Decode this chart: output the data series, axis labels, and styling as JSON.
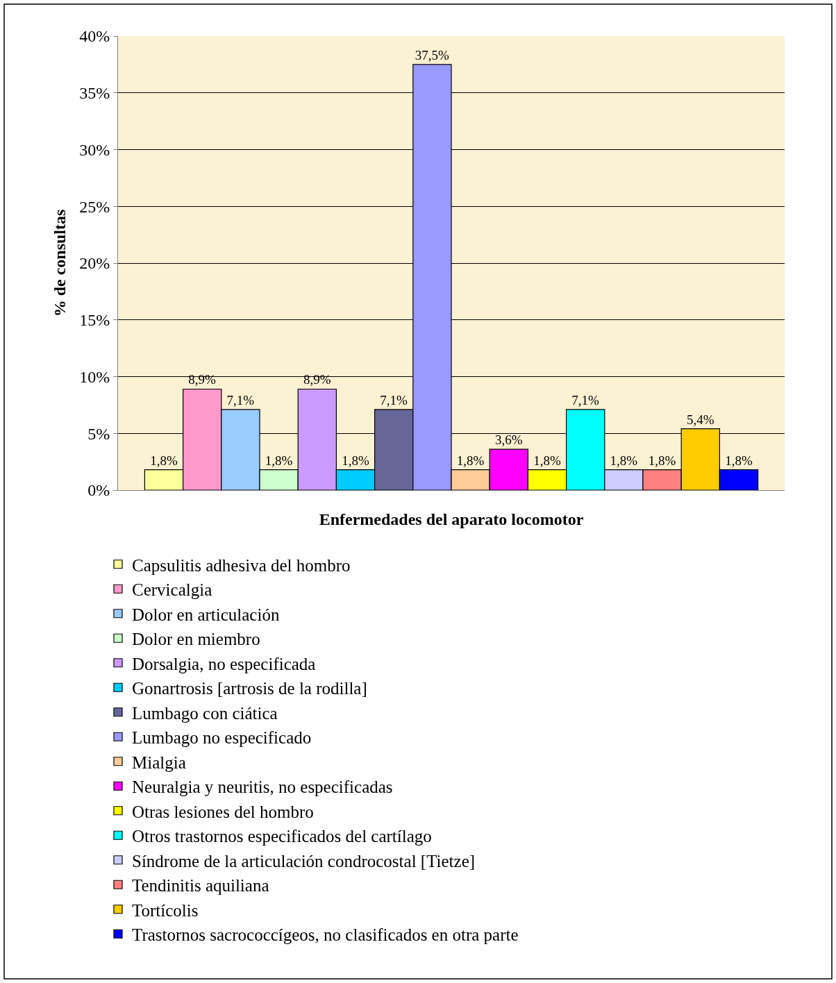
{
  "chart_data": {
    "type": "bar",
    "xlabel": "Enfermedades del aparato locomotor",
    "ylabel": "% de consultas",
    "categories": [
      null
    ],
    "series": [
      {
        "name": "Capsulitis adhesiva del hombro",
        "color": "#ffff99",
        "values": [
          1.8
        ],
        "value_labels": [
          "1,8%"
        ]
      },
      {
        "name": "Cervicalgia",
        "color": "#ff99cc",
        "values": [
          8.9
        ],
        "value_labels": [
          "8,9%"
        ]
      },
      {
        "name": "Dolor en articulación",
        "color": "#99ccff",
        "values": [
          7.1
        ],
        "value_labels": [
          "7,1%"
        ]
      },
      {
        "name": "Dolor en miembro",
        "color": "#ccffcc",
        "values": [
          1.8
        ],
        "value_labels": [
          "1,8%"
        ]
      },
      {
        "name": "Dorsalgia, no especificada",
        "color": "#cc99ff",
        "values": [
          8.9
        ],
        "value_labels": [
          "8,9%"
        ]
      },
      {
        "name": "Gonartrosis [artrosis de la rodilla]",
        "color": "#00ccff",
        "values": [
          1.8
        ],
        "value_labels": [
          "1,8%"
        ]
      },
      {
        "name": "Lumbago con ciática",
        "color": "#666699",
        "values": [
          7.1
        ],
        "value_labels": [
          "7,1%"
        ]
      },
      {
        "name": "Lumbago no especificado",
        "color": "#9999ff",
        "values": [
          37.5
        ],
        "value_labels": [
          "37,5%"
        ]
      },
      {
        "name": "Mialgia",
        "color": "#ffcc99",
        "values": [
          1.8
        ],
        "value_labels": [
          "1,8%"
        ]
      },
      {
        "name": "Neuralgia y neuritis, no especificadas",
        "color": "#ff00ff",
        "values": [
          3.6
        ],
        "value_labels": [
          "3,6%"
        ]
      },
      {
        "name": "Otras lesiones del hombro",
        "color": "#ffff00",
        "values": [
          1.8
        ],
        "value_labels": [
          "1,8%"
        ]
      },
      {
        "name": "Otros trastornos especificados del cartílago",
        "color": "#00ffff",
        "values": [
          7.1
        ],
        "value_labels": [
          "7,1%"
        ]
      },
      {
        "name": "Síndrome de la articulación condrocostal [Tietze]",
        "color": "#ccccff",
        "values": [
          1.8
        ],
        "value_labels": [
          "1,8%"
        ]
      },
      {
        "name": "Tendinitis aquiliana",
        "color": "#ff8080",
        "values": [
          1.8
        ],
        "value_labels": [
          "1,8%"
        ]
      },
      {
        "name": "Tortícolis",
        "color": "#ffcc00",
        "values": [
          5.4
        ],
        "value_labels": [
          "5,4%"
        ]
      },
      {
        "name": "Trastornos sacrococcígeos, no clasificados en otra parte",
        "color": "#0000ff",
        "values": [
          1.8
        ],
        "value_labels": [
          "1,8%"
        ]
      }
    ],
    "ylim": [
      0,
      40
    ],
    "yticks": [
      {
        "value": 0,
        "label": "0%"
      },
      {
        "value": 5,
        "label": "5%"
      },
      {
        "value": 10,
        "label": "10%"
      },
      {
        "value": 15,
        "label": "15%"
      },
      {
        "value": 20,
        "label": "20%"
      },
      {
        "value": 25,
        "label": "25%"
      },
      {
        "value": 30,
        "label": "30%"
      },
      {
        "value": 35,
        "label": "35%"
      },
      {
        "value": 40,
        "label": "40%"
      }
    ],
    "grid": "y",
    "legend": "bottom"
  }
}
